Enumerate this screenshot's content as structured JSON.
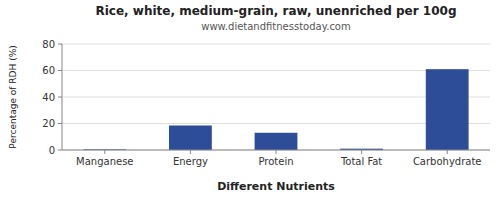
{
  "chart_data": {
    "type": "bar",
    "title": "Rice, white, medium-grain, raw, unenriched per 100g",
    "subtitle": "www.dietandfitnesstoday.com",
    "xlabel": "Different Nutrients",
    "ylabel": "Percentage of RDH (%)",
    "categories": [
      "Manganese",
      "Energy",
      "Protein",
      "Total Fat",
      "Carbohydrate"
    ],
    "values": [
      0.5,
      18.5,
      13.0,
      1.0,
      61.0
    ],
    "color": "#2e4d99",
    "ylim": [
      0,
      80
    ],
    "yticks": [
      0,
      20,
      40,
      60,
      80
    ],
    "grid": true
  }
}
